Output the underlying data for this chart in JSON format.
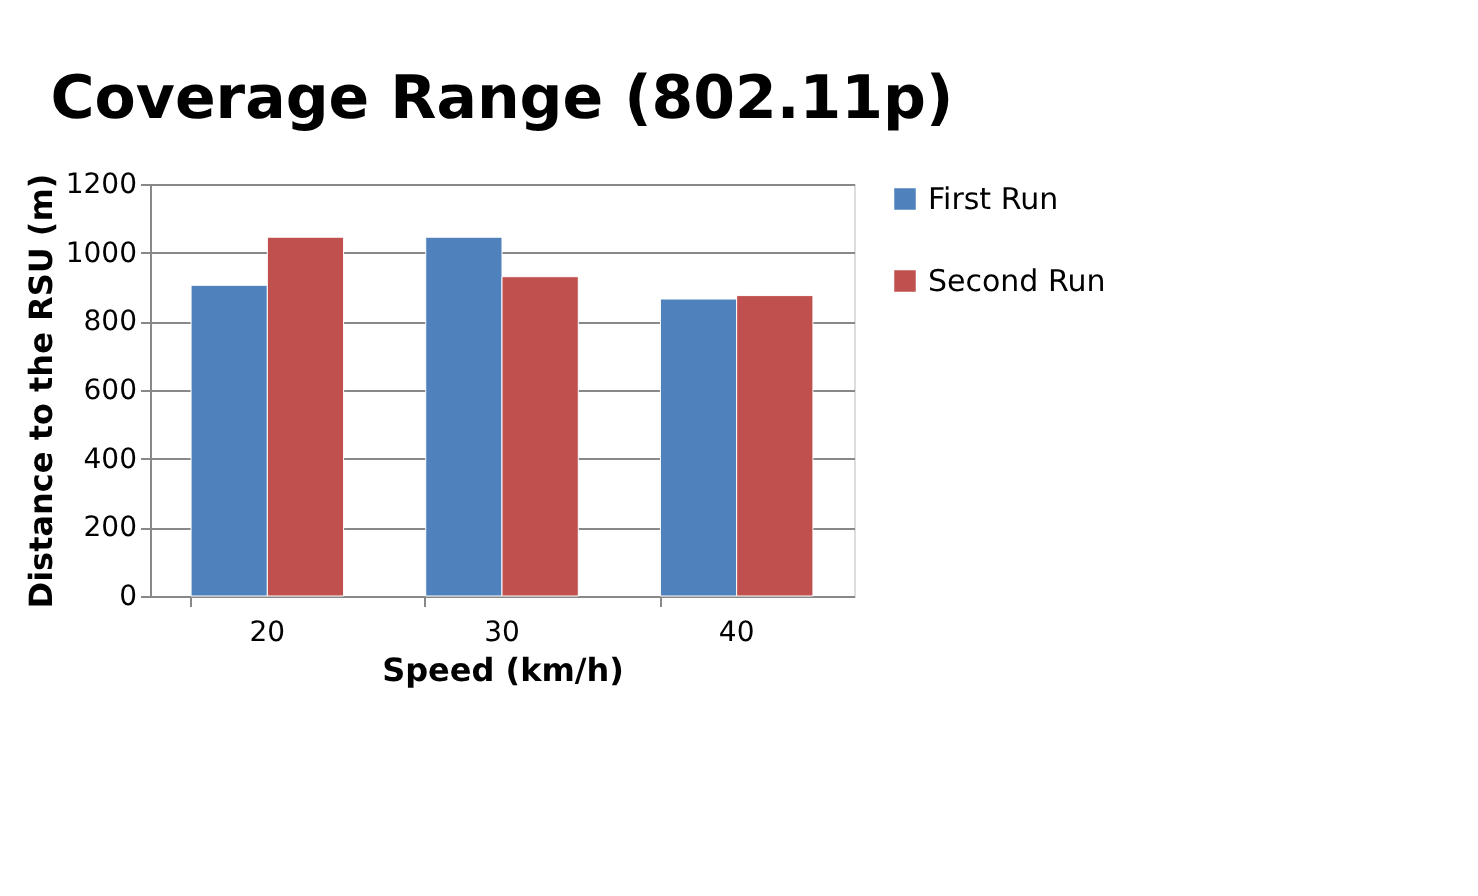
{
  "chart_data": {
    "type": "bar",
    "title": "Coverage Range (802.11p)",
    "xlabel": "Speed (km/h)",
    "ylabel": "Distance to the RSU (m)",
    "categories": [
      "20",
      "30",
      "40"
    ],
    "series": [
      {
        "name": "First Run",
        "color": "#4f81bd",
        "values": [
          905,
          1045,
          865
        ]
      },
      {
        "name": "Second Run",
        "color": "#c0504d",
        "values": [
          1045,
          930,
          875
        ]
      }
    ],
    "ylim": [
      0,
      1200
    ],
    "yticks": [
      0,
      200,
      400,
      600,
      800,
      1000,
      1200
    ],
    "grid": "y",
    "legend": "right"
  }
}
